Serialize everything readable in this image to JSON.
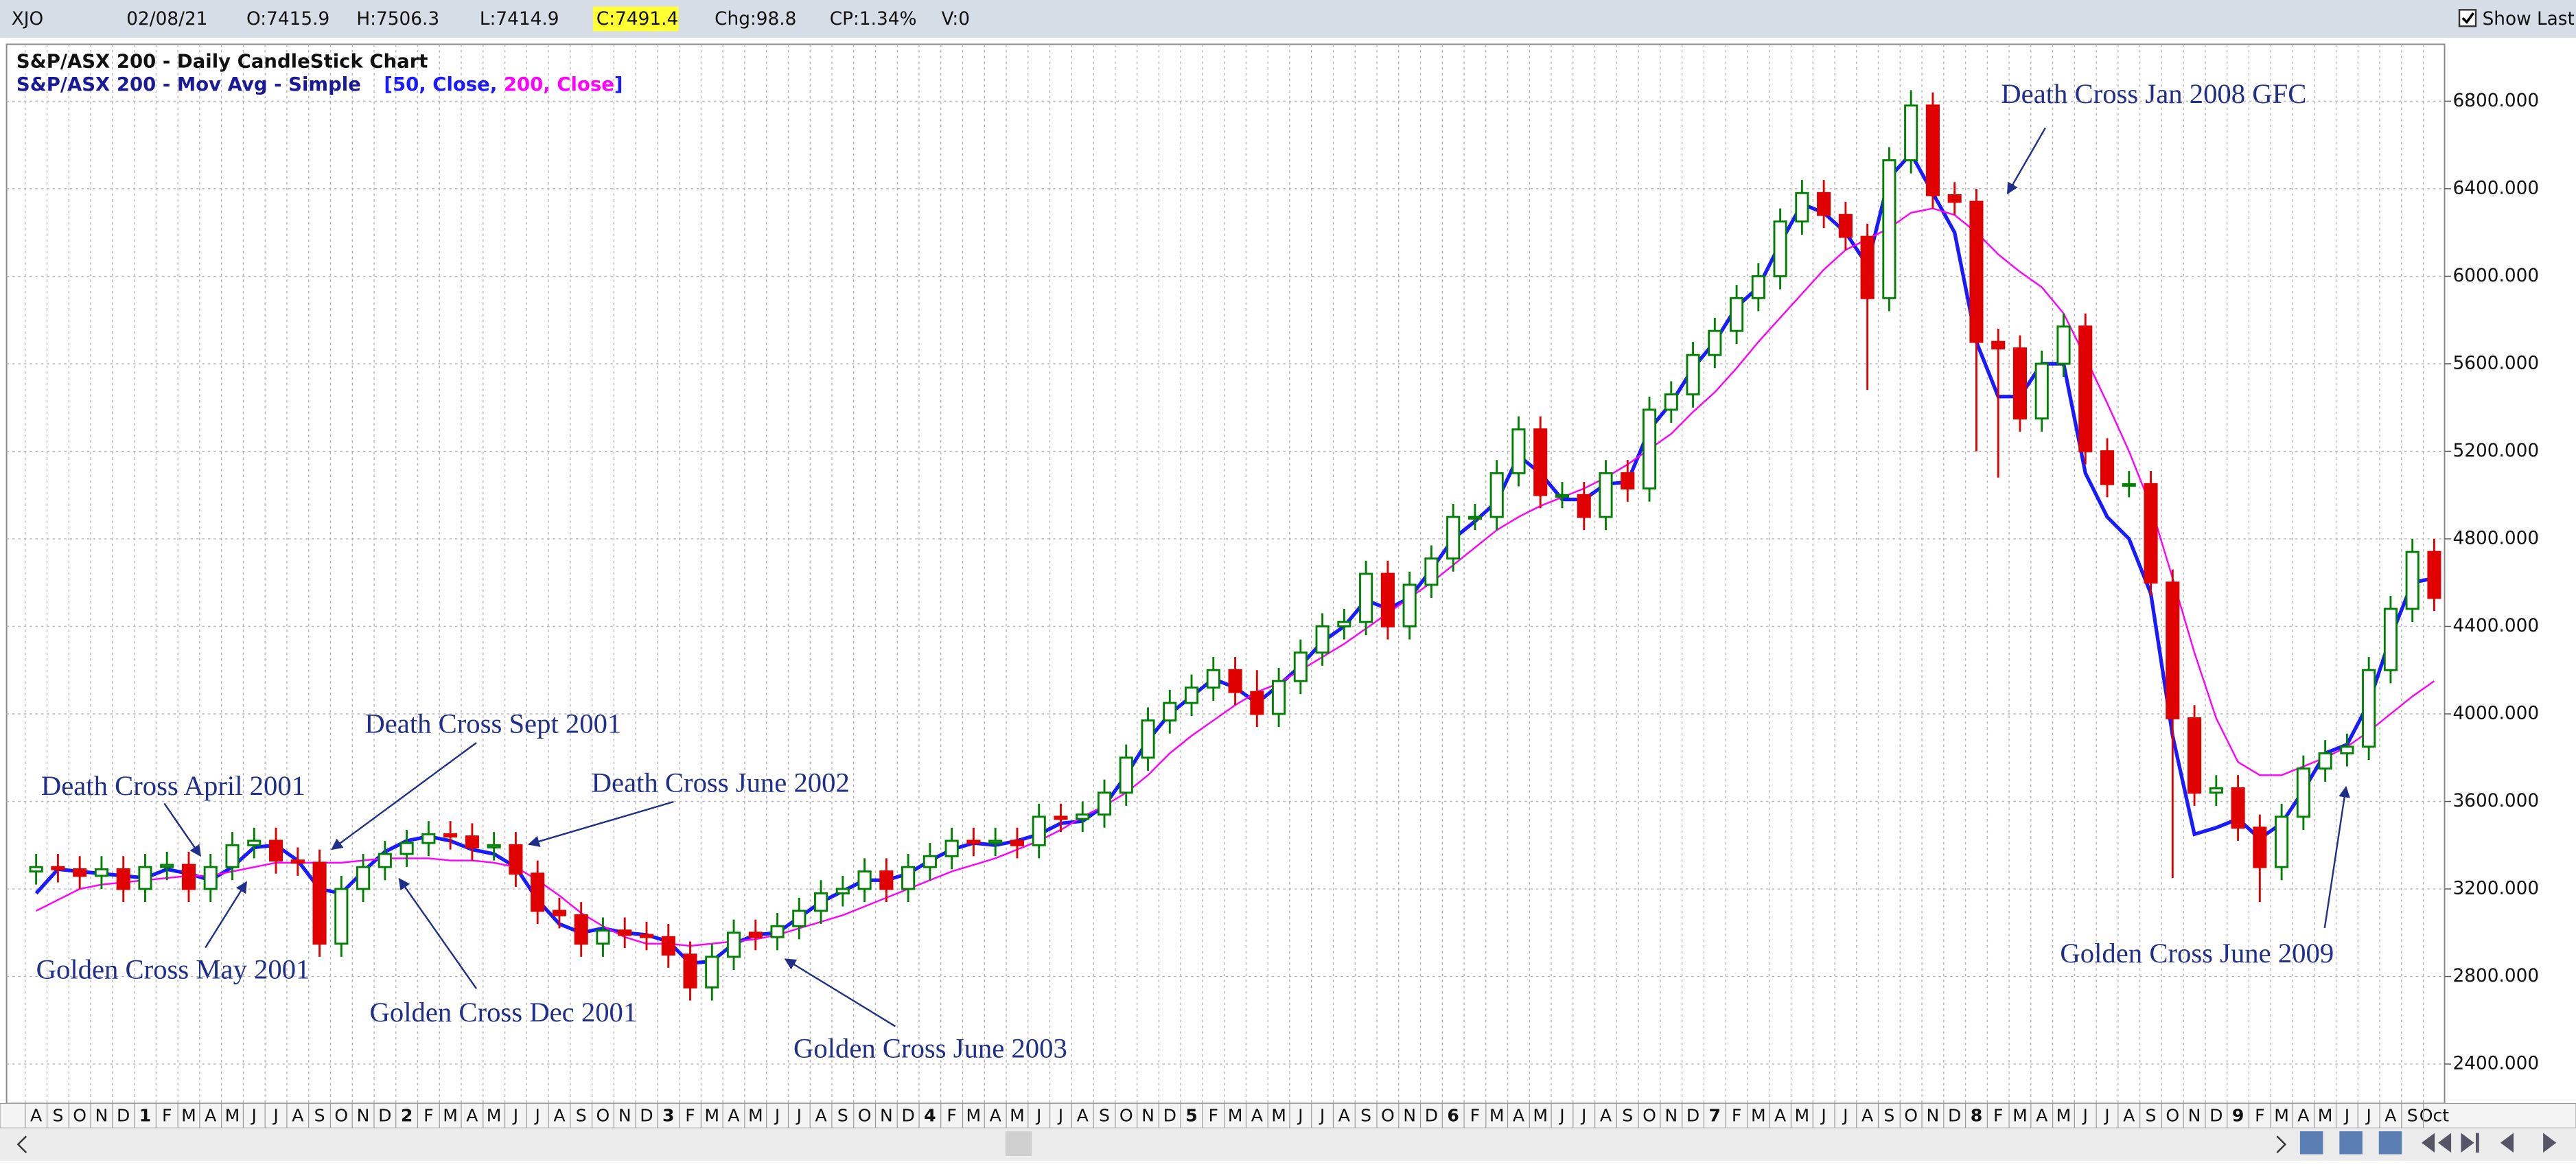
{
  "toolbar": {
    "symbol": "XJO",
    "date": "02/08/21",
    "open": "O:7415.9",
    "high": "H:7506.3",
    "low": "L:7414.9",
    "close": "C:7491.4",
    "change": "Chg:98.8",
    "change_pct": "CP:1.34%",
    "volume": "V:0",
    "show_last": "Show Last"
  },
  "chart_data": {
    "type": "candlestick",
    "title": "S&P/ASX 200 - Daily CandleStick Chart",
    "subtitle": "S&P/ASX 200 - Mov Avg - Simple",
    "legend_brackets": [
      "[",
      "]"
    ],
    "up_color": "#008000",
    "down_color": "#e00000",
    "categories": [
      "A",
      "S",
      "O",
      "N",
      "D",
      "1",
      "F",
      "M",
      "A",
      "M",
      "J",
      "J",
      "A",
      "S",
      "O",
      "N",
      "D",
      "2",
      "F",
      "M",
      "A",
      "M",
      "J",
      "J",
      "A",
      "S",
      "O",
      "N",
      "D",
      "3",
      "F",
      "M",
      "A",
      "M",
      "J",
      "J",
      "A",
      "S",
      "O",
      "N",
      "D",
      "4",
      "F",
      "M",
      "A",
      "M",
      "J",
      "J",
      "A",
      "S",
      "O",
      "N",
      "D",
      "5",
      "F",
      "M",
      "A",
      "M",
      "J",
      "J",
      "A",
      "S",
      "O",
      "N",
      "D",
      "6",
      "F",
      "M",
      "A",
      "M",
      "J",
      "J",
      "A",
      "S",
      "O",
      "N",
      "D",
      "7",
      "F",
      "M",
      "A",
      "M",
      "J",
      "J",
      "A",
      "S",
      "O",
      "N",
      "D",
      "8",
      "F",
      "M",
      "A",
      "M",
      "J",
      "J",
      "A",
      "S",
      "O",
      "N",
      "D",
      "9",
      "F",
      "M",
      "A",
      "M",
      "J",
      "J",
      "A",
      "S",
      "Oct"
    ],
    "open": [
      3280,
      3300,
      3290,
      3260,
      3290,
      3200,
      3300,
      3310,
      3200,
      3300,
      3400,
      3420,
      3330,
      3320,
      2950,
      3200,
      3300,
      3360,
      3410,
      3450,
      3440,
      3390,
      3400,
      3270,
      3100,
      3080,
      2950,
      3010,
      2990,
      2980,
      2900,
      2750,
      2890,
      3000,
      2980,
      3030,
      3100,
      3180,
      3200,
      3280,
      3200,
      3300,
      3350,
      3420,
      3410,
      3420,
      3400,
      3530,
      3520,
      3540,
      3640,
      3800,
      3970,
      4050,
      4120,
      4200,
      4100,
      4000,
      4150,
      4280,
      4400,
      4420,
      4640,
      4400,
      4590,
      4710,
      4900,
      4900,
      5100,
      5300,
      5000,
      5000,
      4900,
      5100,
      5030,
      5390,
      5460,
      5640,
      5750,
      5900,
      6000,
      6250,
      6380,
      6280,
      6180,
      5900,
      6530,
      6780,
      6370,
      6340,
      5700,
      5670,
      5350,
      5600,
      5770,
      5200,
      5050,
      5050,
      4600,
      3980,
      3640,
      3660,
      3480,
      3300,
      3530,
      3750,
      3820,
      3850,
      4200,
      4480,
      4740
    ],
    "high": [
      3360,
      3360,
      3350,
      3350,
      3350,
      3360,
      3370,
      3370,
      3360,
      3460,
      3480,
      3480,
      3390,
      3380,
      3260,
      3360,
      3420,
      3470,
      3510,
      3510,
      3500,
      3460,
      3460,
      3330,
      3160,
      3140,
      3070,
      3070,
      3050,
      3040,
      2960,
      2950,
      3060,
      3060,
      3090,
      3160,
      3240,
      3260,
      3340,
      3340,
      3360,
      3410,
      3480,
      3480,
      3480,
      3480,
      3590,
      3590,
      3600,
      3700,
      3860,
      4030,
      4110,
      4180,
      4260,
      4260,
      4200,
      4210,
      4340,
      4460,
      4480,
      4700,
      4700,
      4650,
      4770,
      4960,
      4960,
      5160,
      5360,
      5360,
      5060,
      5060,
      5160,
      5160,
      5450,
      5520,
      5700,
      5810,
      5960,
      6060,
      6310,
      6440,
      6440,
      6340,
      6240,
      6590,
      6850,
      6840,
      6430,
      6400,
      5760,
      5730,
      5660,
      5830,
      5830,
      5260,
      5110,
      5110,
      4660,
      4040,
      3720,
      3720,
      3540,
      3590,
      3810,
      3880,
      3910,
      4260,
      4540,
      4800,
      4800
    ],
    "low": [
      3220,
      3230,
      3200,
      3200,
      3140,
      3140,
      3240,
      3140,
      3140,
      3240,
      3340,
      3270,
      3260,
      2890,
      2890,
      3140,
      3240,
      3300,
      3350,
      3380,
      3330,
      3330,
      3210,
      3040,
      3020,
      2890,
      2890,
      2930,
      2920,
      2840,
      2690,
      2690,
      2830,
      2920,
      2920,
      2970,
      3040,
      3120,
      3140,
      3140,
      3140,
      3240,
      3290,
      3350,
      3350,
      3340,
      3340,
      3460,
      3460,
      3480,
      3580,
      3740,
      3910,
      3990,
      4060,
      4040,
      3940,
      3940,
      4090,
      4220,
      4340,
      4360,
      4340,
      4340,
      4530,
      4650,
      4840,
      4840,
      5040,
      4940,
      4940,
      4840,
      4840,
      4970,
      4970,
      5330,
      5400,
      5580,
      5690,
      5840,
      5940,
      6190,
      6220,
      6120,
      5480,
      5840,
      6470,
      6310,
      6280,
      5200,
      5080,
      5290,
      5290,
      5540,
      5140,
      4990,
      4990,
      4540,
      3250,
      3580,
      3580,
      3420,
      3140,
      3240,
      3470,
      3690,
      3760,
      3790,
      4140,
      4420,
      4470
    ],
    "close": [
      3300,
      3290,
      3260,
      3290,
      3200,
      3300,
      3310,
      3200,
      3300,
      3400,
      3420,
      3330,
      3320,
      2950,
      3200,
      3300,
      3360,
      3410,
      3450,
      3440,
      3390,
      3400,
      3270,
      3100,
      3080,
      2950,
      3010,
      2990,
      2980,
      2900,
      2750,
      2890,
      3000,
      2980,
      3030,
      3100,
      3180,
      3200,
      3280,
      3200,
      3300,
      3350,
      3420,
      3410,
      3420,
      3400,
      3530,
      3520,
      3540,
      3640,
      3800,
      3970,
      4050,
      4120,
      4200,
      4100,
      4000,
      4150,
      4280,
      4400,
      4420,
      4640,
      4400,
      4590,
      4710,
      4900,
      4900,
      5100,
      5300,
      5000,
      5000,
      4900,
      5100,
      5030,
      5390,
      5460,
      5640,
      5750,
      5900,
      6000,
      6250,
      6380,
      6280,
      6180,
      5900,
      6530,
      6780,
      6370,
      6340,
      5700,
      5670,
      5350,
      5600,
      5770,
      5200,
      5050,
      5050,
      4600,
      3980,
      3640,
      3660,
      3480,
      3300,
      3530,
      3750,
      3820,
      3850,
      4200,
      4480,
      4740,
      4530
    ],
    "series": [
      {
        "name": "50, Close,",
        "color": "#1a1aff",
        "values": [
          3180,
          3290,
          3280,
          3270,
          3260,
          3250,
          3290,
          3270,
          3240,
          3300,
          3390,
          3400,
          3330,
          3200,
          3180,
          3280,
          3370,
          3420,
          3440,
          3420,
          3380,
          3360,
          3300,
          3150,
          3040,
          3000,
          3020,
          3000,
          2990,
          2960,
          2860,
          2870,
          2950,
          2990,
          3000,
          3070,
          3140,
          3190,
          3240,
          3240,
          3270,
          3330,
          3380,
          3410,
          3400,
          3420,
          3450,
          3500,
          3510,
          3580,
          3720,
          3880,
          4000,
          4080,
          4160,
          4120,
          4050,
          4130,
          4220,
          4330,
          4400,
          4520,
          4480,
          4530,
          4660,
          4800,
          4880,
          4970,
          5180,
          5100,
          4980,
          4980,
          5050,
          5060,
          5300,
          5420,
          5580,
          5700,
          5860,
          5950,
          6150,
          6330,
          6290,
          6200,
          6050,
          6450,
          6560,
          6380,
          6200,
          5700,
          5450,
          5450,
          5600,
          5600,
          5100,
          4900,
          4800,
          4550,
          3900,
          3450,
          3480,
          3520,
          3430,
          3500,
          3650,
          3820,
          3860,
          4050,
          4350,
          4600,
          4620
        ]
      },
      {
        "name": "200, Close",
        "color": "#ff00ff",
        "values": [
          3100,
          3150,
          3200,
          3220,
          3230,
          3240,
          3250,
          3260,
          3260,
          3280,
          3300,
          3320,
          3320,
          3320,
          3320,
          3330,
          3340,
          3340,
          3340,
          3330,
          3330,
          3320,
          3300,
          3240,
          3170,
          3090,
          3030,
          2980,
          2950,
          2950,
          2940,
          2950,
          2960,
          2970,
          2990,
          3020,
          3050,
          3080,
          3120,
          3160,
          3200,
          3240,
          3280,
          3310,
          3340,
          3380,
          3420,
          3470,
          3530,
          3580,
          3640,
          3720,
          3820,
          3900,
          3970,
          4040,
          4100,
          4140,
          4200,
          4260,
          4320,
          4390,
          4460,
          4530,
          4600,
          4680,
          4760,
          4840,
          4900,
          4950,
          4990,
          5030,
          5080,
          5140,
          5210,
          5280,
          5380,
          5470,
          5580,
          5700,
          5810,
          5920,
          6030,
          6120,
          6170,
          6220,
          6290,
          6310,
          6280,
          6200,
          6100,
          6020,
          5950,
          5830,
          5630,
          5420,
          5200,
          4950,
          4620,
          4280,
          3980,
          3780,
          3720,
          3720,
          3760,
          3800,
          3850,
          3920,
          4000,
          4080,
          4150
        ]
      }
    ],
    "ylim": [
      2220,
      7060
    ],
    "yticks": [
      {
        "value": 2400,
        "label": "2400.000"
      },
      {
        "value": 2800,
        "label": "2800.000"
      },
      {
        "value": 3200,
        "label": "3200.000"
      },
      {
        "value": 3600,
        "label": "3600.000"
      },
      {
        "value": 4000,
        "label": "4000.000"
      },
      {
        "value": 4400,
        "label": "4400.000"
      },
      {
        "value": 4800,
        "label": "4800.000"
      },
      {
        "value": 5200,
        "label": "5200.000"
      },
      {
        "value": 5600,
        "label": "5600.000"
      },
      {
        "value": 6000,
        "label": "6000.000"
      },
      {
        "value": 6400,
        "label": "6400.000"
      },
      {
        "value": 6800,
        "label": "6800.000"
      }
    ],
    "grid": true,
    "annotations": [
      "Death Cross April 2001",
      "Golden Cross May 2001",
      "Death Cross Sept 2001",
      "Golden Cross Dec 2001",
      "Death Cross June 2002",
      "Golden Cross June 2003",
      "Death Cross Jan 2008 GFC",
      "Golden Cross June 2009"
    ]
  }
}
